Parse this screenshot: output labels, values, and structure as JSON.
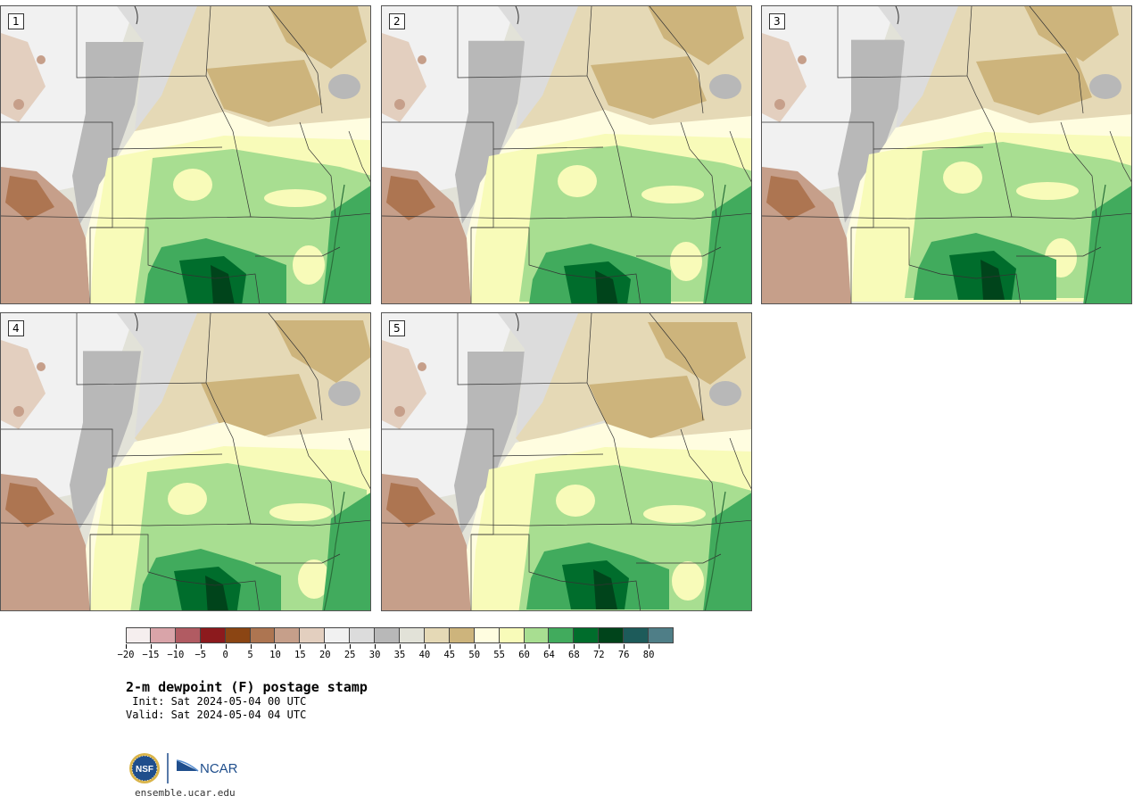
{
  "panels": [
    {
      "label": "1"
    },
    {
      "label": "2"
    },
    {
      "label": "3"
    },
    {
      "label": "4"
    },
    {
      "label": "5"
    }
  ],
  "colorbar": {
    "bins": [
      {
        "color": "#f5eeee"
      },
      {
        "color": "#d9a4a9"
      },
      {
        "color": "#b15b62"
      },
      {
        "color": "#8c1a1d"
      },
      {
        "color": "#8b4513"
      },
      {
        "color": "#ad7551"
      },
      {
        "color": "#c69f8a"
      },
      {
        "color": "#e3cfbf"
      },
      {
        "color": "#f1f1f1"
      },
      {
        "color": "#dcdcdc"
      },
      {
        "color": "#b8b8b8"
      },
      {
        "color": "#e2e2d8"
      },
      {
        "color": "#e5d9b6"
      },
      {
        "color": "#cdb47c"
      },
      {
        "color": "#fffde0"
      },
      {
        "color": "#f8fbb9"
      },
      {
        "color": "#a8de91"
      },
      {
        "color": "#41ab5d"
      },
      {
        "color": "#006d2c"
      },
      {
        "color": "#00441b"
      },
      {
        "color": "#1d5b5a"
      },
      {
        "color": "#4f7e87"
      }
    ],
    "tick_labels": [
      "−20",
      "−15",
      "−10",
      "−5",
      "0",
      "5",
      "10",
      "15",
      "20",
      "25",
      "30",
      "35",
      "40",
      "45",
      "50",
      "55",
      "60",
      "64",
      "68",
      "72",
      "76",
      "80"
    ]
  },
  "title": "2-m dewpoint (F) postage stamp",
  "init": " Init: Sat 2024-05-04 00 UTC",
  "valid": "Valid: Sat 2024-05-04 04 UTC",
  "logos": {
    "nsf_text": "NSF",
    "ncar_text": "NCAR"
  },
  "site": "ensemble.ucar.edu"
}
